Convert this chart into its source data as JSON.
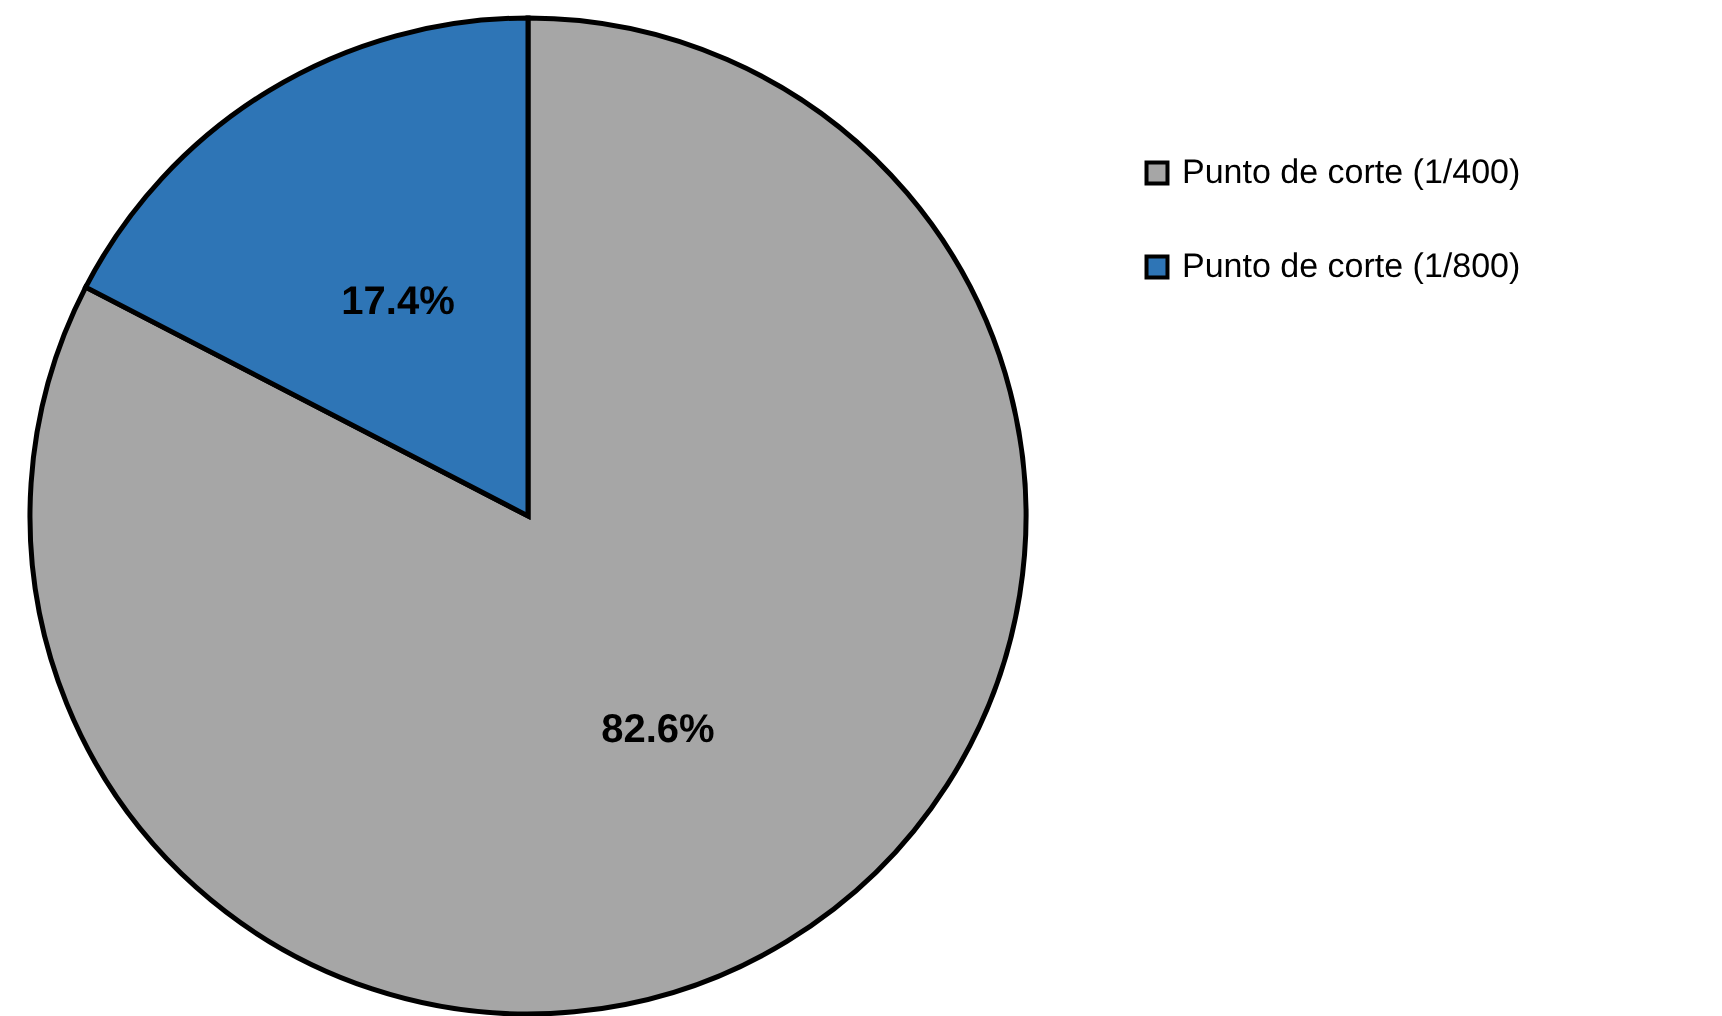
{
  "chart_data": {
    "type": "pie",
    "categories": [
      "Punto de corte (1/400)",
      "Punto de corte (1/800)"
    ],
    "values": [
      82.6,
      17.4
    ],
    "colors": [
      "#a6a6a6",
      "#2e75b6"
    ],
    "value_labels": [
      "82.6%",
      "17.4%"
    ],
    "legend": "right"
  }
}
